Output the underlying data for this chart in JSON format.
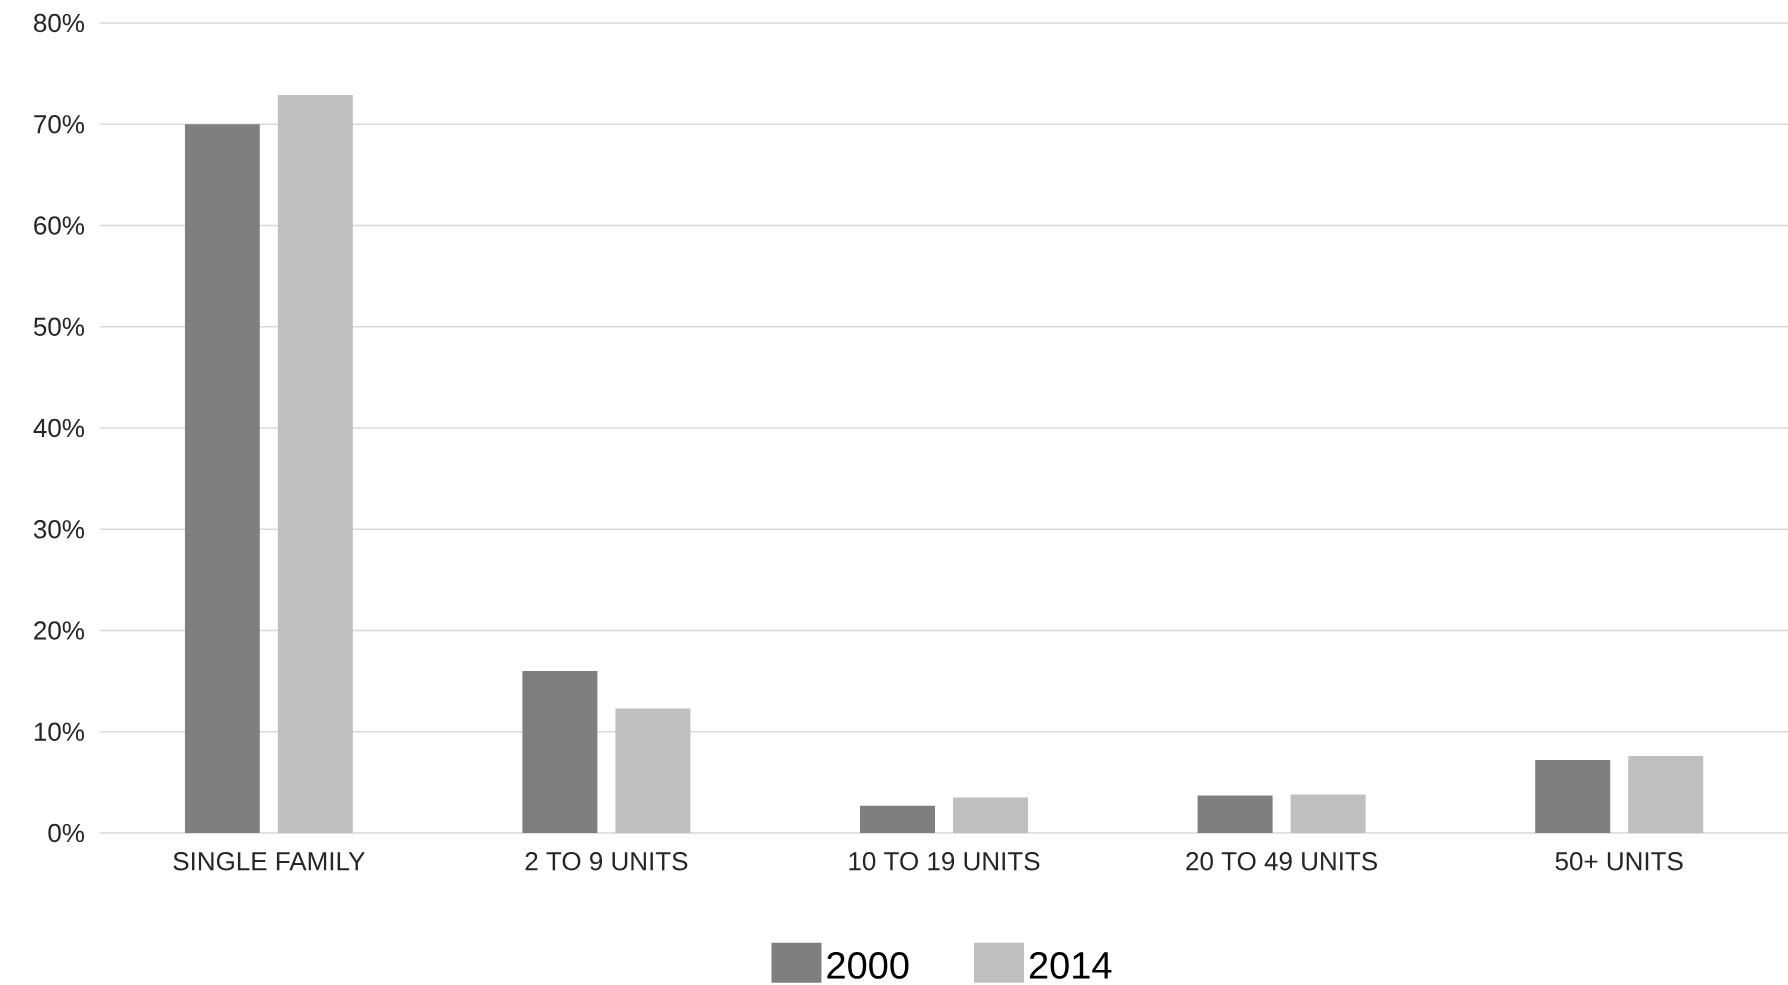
{
  "chart_data": {
    "type": "bar",
    "categories": [
      "SINGLE FAMILY",
      "2 TO 9 UNITS",
      "10 TO 19 UNITS",
      "20 TO 49 UNITS",
      "50+ UNITS"
    ],
    "series": [
      {
        "name": "2000",
        "color": "#7f7f7f",
        "values": [
          70.0,
          16.0,
          2.7,
          3.7,
          7.2
        ]
      },
      {
        "name": "2014",
        "color": "#bfbfbf",
        "values": [
          72.9,
          12.3,
          3.5,
          3.8,
          7.6
        ]
      }
    ],
    "ylim": [
      0,
      80
    ],
    "yticks": [
      {
        "value": 0,
        "label": "0%"
      },
      {
        "value": 10,
        "label": "10%"
      },
      {
        "value": 20,
        "label": "20%"
      },
      {
        "value": 30,
        "label": "30%"
      },
      {
        "value": 40,
        "label": "40%"
      },
      {
        "value": 50,
        "label": "50%"
      },
      {
        "value": 60,
        "label": "60%"
      },
      {
        "value": 70,
        "label": "70%"
      },
      {
        "value": 80,
        "label": "80%"
      }
    ],
    "grid": "y",
    "legend": "bottom"
  }
}
